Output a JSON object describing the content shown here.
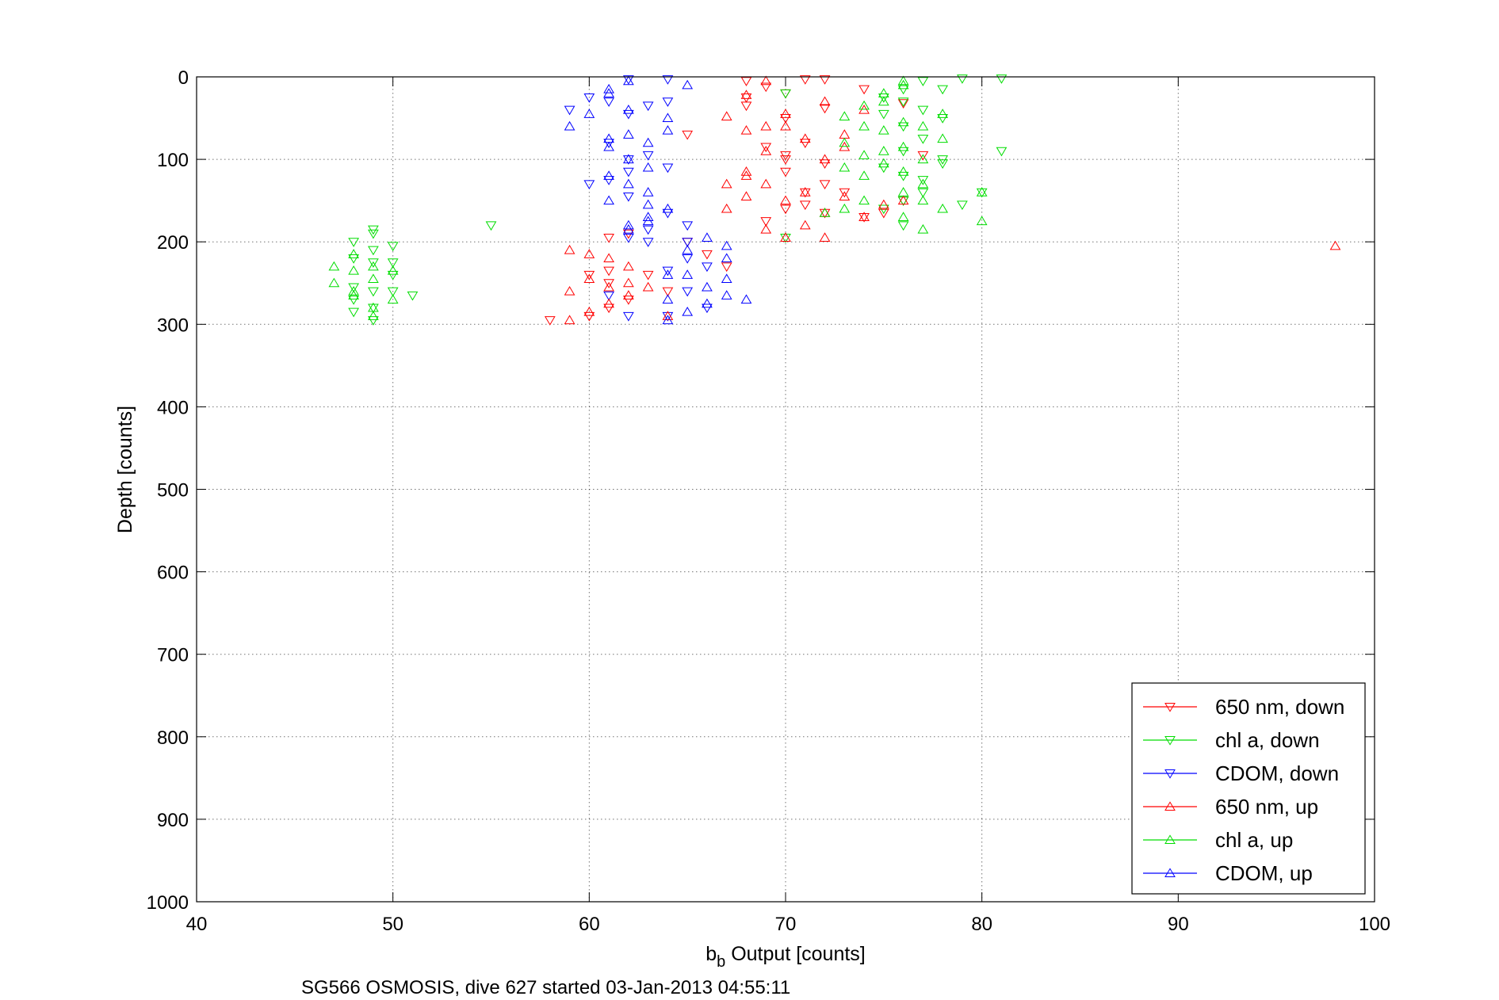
{
  "chart_data": {
    "type": "scatter",
    "title": "",
    "xlabel_main": "b",
    "xlabel_sub": "b",
    "xlabel_rest": " Output [counts]",
    "ylabel": "Depth [counts]",
    "caption": "SG566 OSMOSIS, dive 627 started 03-Jan-2013 04:55:11",
    "xlim": [
      40,
      100
    ],
    "ylim": [
      0,
      1000
    ],
    "y_reversed": true,
    "grid": true,
    "legend_position": "bottom-right",
    "xticks": [
      "40",
      "50",
      "60",
      "70",
      "80",
      "90",
      "100"
    ],
    "yticks": [
      "0",
      "100",
      "200",
      "300",
      "400",
      "500",
      "600",
      "700",
      "800",
      "900",
      "1000"
    ],
    "series": [
      {
        "name": "650 nm, down",
        "color": "#ff0000",
        "marker": "triangle-down",
        "points": [
          [
            68,
            5
          ],
          [
            69,
            12
          ],
          [
            70,
            20
          ],
          [
            71,
            3
          ],
          [
            72,
            3
          ],
          [
            68,
            25
          ],
          [
            70,
            50
          ],
          [
            72,
            38
          ],
          [
            74,
            15
          ],
          [
            76,
            32
          ],
          [
            68,
            35
          ],
          [
            65,
            70
          ],
          [
            69,
            85
          ],
          [
            70,
            95
          ],
          [
            71,
            80
          ],
          [
            72,
            105
          ],
          [
            73,
            140
          ],
          [
            70,
            115
          ],
          [
            72,
            130
          ],
          [
            74,
            170
          ],
          [
            75,
            165
          ],
          [
            76,
            150
          ],
          [
            77,
            95
          ],
          [
            69,
            175
          ],
          [
            70,
            160
          ],
          [
            71,
            155
          ],
          [
            72,
            165
          ],
          [
            61,
            195
          ],
          [
            62,
            190
          ],
          [
            60,
            240
          ],
          [
            61,
            235
          ],
          [
            61,
            250
          ],
          [
            62,
            270
          ],
          [
            63,
            240
          ],
          [
            61,
            280
          ],
          [
            60,
            290
          ],
          [
            58,
            295
          ],
          [
            64,
            260
          ],
          [
            65,
            200
          ],
          [
            66,
            215
          ],
          [
            67,
            230
          ],
          [
            70,
            100
          ],
          [
            71,
            140
          ]
        ]
      },
      {
        "name": "chl a, down",
        "color": "#00dd00",
        "marker": "triangle-down",
        "points": [
          [
            79,
            2
          ],
          [
            81,
            2
          ],
          [
            77,
            5
          ],
          [
            76,
            15
          ],
          [
            78,
            15
          ],
          [
            75,
            25
          ],
          [
            76,
            30
          ],
          [
            77,
            40
          ],
          [
            78,
            50
          ],
          [
            75,
            45
          ],
          [
            76,
            60
          ],
          [
            77,
            75
          ],
          [
            76,
            90
          ],
          [
            78,
            105
          ],
          [
            75,
            110
          ],
          [
            76,
            120
          ],
          [
            77,
            125
          ],
          [
            78,
            100
          ],
          [
            79,
            155
          ],
          [
            80,
            140
          ],
          [
            81,
            90
          ],
          [
            75,
            160
          ],
          [
            76,
            150
          ],
          [
            77,
            140
          ],
          [
            70,
            20
          ],
          [
            55,
            180
          ],
          [
            49,
            185
          ],
          [
            49,
            190
          ],
          [
            48,
            200
          ],
          [
            50,
            205
          ],
          [
            49,
            210
          ],
          [
            48,
            220
          ],
          [
            50,
            225
          ],
          [
            49,
            225
          ],
          [
            50,
            240
          ],
          [
            48,
            255
          ],
          [
            49,
            260
          ],
          [
            50,
            260
          ],
          [
            51,
            265
          ],
          [
            48,
            270
          ],
          [
            49,
            280
          ],
          [
            48,
            285
          ],
          [
            49,
            295
          ],
          [
            70,
            195
          ],
          [
            76,
            180
          ]
        ]
      },
      {
        "name": "CDOM, down",
        "color": "#0000ff",
        "marker": "triangle-down",
        "points": [
          [
            62,
            3
          ],
          [
            64,
            3
          ],
          [
            60,
            25
          ],
          [
            61,
            30
          ],
          [
            62,
            45
          ],
          [
            59,
            40
          ],
          [
            63,
            35
          ],
          [
            64,
            30
          ],
          [
            61,
            80
          ],
          [
            62,
            100
          ],
          [
            63,
            95
          ],
          [
            64,
            110
          ],
          [
            62,
            115
          ],
          [
            61,
            125
          ],
          [
            62,
            145
          ],
          [
            64,
            165
          ],
          [
            63,
            185
          ],
          [
            62,
            195
          ],
          [
            63,
            200
          ],
          [
            60,
            130
          ],
          [
            65,
            180
          ],
          [
            65,
            200
          ],
          [
            64,
            235
          ],
          [
            65,
            220
          ],
          [
            66,
            230
          ],
          [
            65,
            260
          ],
          [
            66,
            280
          ],
          [
            64,
            290
          ],
          [
            61,
            265
          ],
          [
            62,
            290
          ]
        ]
      },
      {
        "name": "650 nm, up",
        "color": "#ff0000",
        "marker": "triangle-up",
        "points": [
          [
            69,
            5
          ],
          [
            68,
            22
          ],
          [
            72,
            30
          ],
          [
            71,
            75
          ],
          [
            70,
            60
          ],
          [
            67,
            48
          ],
          [
            68,
            65
          ],
          [
            69,
            60
          ],
          [
            70,
            45
          ],
          [
            72,
            100
          ],
          [
            73,
            85
          ],
          [
            73,
            70
          ],
          [
            74,
            40
          ],
          [
            69,
            90
          ],
          [
            68,
            120
          ],
          [
            67,
            130
          ],
          [
            68,
            115
          ],
          [
            69,
            130
          ],
          [
            70,
            150
          ],
          [
            71,
            140
          ],
          [
            72,
            165
          ],
          [
            73,
            145
          ],
          [
            74,
            170
          ],
          [
            75,
            155
          ],
          [
            76,
            150
          ],
          [
            67,
            160
          ],
          [
            68,
            145
          ],
          [
            69,
            185
          ],
          [
            70,
            195
          ],
          [
            72,
            195
          ],
          [
            98,
            205
          ],
          [
            59,
            210
          ],
          [
            60,
            215
          ],
          [
            61,
            220
          ],
          [
            62,
            230
          ],
          [
            60,
            245
          ],
          [
            61,
            255
          ],
          [
            62,
            250
          ],
          [
            63,
            255
          ],
          [
            59,
            260
          ],
          [
            60,
            285
          ],
          [
            61,
            275
          ],
          [
            62,
            265
          ],
          [
            59,
            295
          ],
          [
            64,
            290
          ],
          [
            71,
            180
          ]
        ]
      },
      {
        "name": "chl a, up",
        "color": "#00dd00",
        "marker": "triangle-up",
        "points": [
          [
            76,
            5
          ],
          [
            75,
            20
          ],
          [
            76,
            10
          ],
          [
            74,
            35
          ],
          [
            75,
            30
          ],
          [
            73,
            48
          ],
          [
            74,
            60
          ],
          [
            75,
            65
          ],
          [
            76,
            55
          ],
          [
            77,
            60
          ],
          [
            78,
            45
          ],
          [
            73,
            80
          ],
          [
            74,
            95
          ],
          [
            76,
            85
          ],
          [
            77,
            100
          ],
          [
            78,
            75
          ],
          [
            73,
            110
          ],
          [
            74,
            120
          ],
          [
            75,
            105
          ],
          [
            76,
            115
          ],
          [
            77,
            130
          ],
          [
            80,
            140
          ],
          [
            80,
            175
          ],
          [
            78,
            160
          ],
          [
            77,
            150
          ],
          [
            76,
            170
          ],
          [
            77,
            185
          ],
          [
            74,
            150
          ],
          [
            73,
            160
          ],
          [
            72,
            165
          ],
          [
            47,
            250
          ],
          [
            48,
            235
          ],
          [
            49,
            245
          ],
          [
            48,
            215
          ],
          [
            49,
            230
          ],
          [
            50,
            235
          ],
          [
            50,
            270
          ],
          [
            49,
            280
          ],
          [
            48,
            265
          ],
          [
            49,
            290
          ],
          [
            48,
            260
          ],
          [
            47,
            230
          ],
          [
            76,
            140
          ],
          [
            75,
            90
          ]
        ]
      },
      {
        "name": "CDOM, up",
        "color": "#0000ff",
        "marker": "triangle-up",
        "points": [
          [
            62,
            5
          ],
          [
            61,
            15
          ],
          [
            65,
            10
          ],
          [
            60,
            45
          ],
          [
            61,
            20
          ],
          [
            62,
            40
          ],
          [
            59,
            60
          ],
          [
            61,
            75
          ],
          [
            62,
            70
          ],
          [
            63,
            80
          ],
          [
            64,
            65
          ],
          [
            64,
            50
          ],
          [
            62,
            100
          ],
          [
            63,
            110
          ],
          [
            61,
            120
          ],
          [
            62,
            130
          ],
          [
            63,
            140
          ],
          [
            62,
            185
          ],
          [
            63,
            155
          ],
          [
            64,
            160
          ],
          [
            63,
            175
          ],
          [
            61,
            150
          ],
          [
            62,
            180
          ],
          [
            64,
            240
          ],
          [
            65,
            210
          ],
          [
            66,
            195
          ],
          [
            67,
            205
          ],
          [
            67,
            220
          ],
          [
            65,
            240
          ],
          [
            66,
            255
          ],
          [
            67,
            245
          ],
          [
            64,
            270
          ],
          [
            65,
            285
          ],
          [
            66,
            275
          ],
          [
            67,
            265
          ],
          [
            64,
            295
          ],
          [
            68,
            270
          ],
          [
            63,
            170
          ],
          [
            61,
            85
          ]
        ]
      }
    ]
  }
}
